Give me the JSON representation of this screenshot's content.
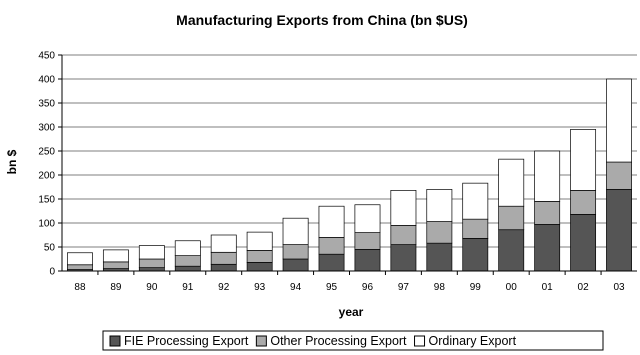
{
  "chart_data": {
    "type": "bar",
    "stacked": true,
    "title": "Manufacturing Exports from China (bn $US)",
    "xlabel": "year",
    "ylabel": "bn $",
    "ylim": [
      0,
      450
    ],
    "yticks": [
      0,
      50,
      100,
      150,
      200,
      250,
      300,
      350,
      400,
      450
    ],
    "grid": true,
    "legend_position": "bottom",
    "categories": [
      "88",
      "89",
      "90",
      "91",
      "92",
      "93",
      "94",
      "95",
      "96",
      "97",
      "98",
      "99",
      "00",
      "01",
      "02",
      "03"
    ],
    "series": [
      {
        "name": "FIE Processing Export",
        "color": "#555555",
        "values": [
          3,
          5,
          7,
          10,
          14,
          18,
          25,
          35,
          45,
          55,
          58,
          68,
          86,
          97,
          118,
          170
        ]
      },
      {
        "name": "Other Processing Export",
        "color": "#aaaaaa",
        "values": [
          10,
          14,
          18,
          22,
          25,
          25,
          30,
          35,
          35,
          40,
          45,
          40,
          49,
          48,
          50,
          57
        ]
      },
      {
        "name": "Ordinary Export",
        "color": "#ffffff",
        "values": [
          25,
          25,
          28,
          31,
          36,
          38,
          55,
          65,
          58,
          73,
          67,
          75,
          98,
          105,
          127,
          173
        ]
      }
    ]
  }
}
